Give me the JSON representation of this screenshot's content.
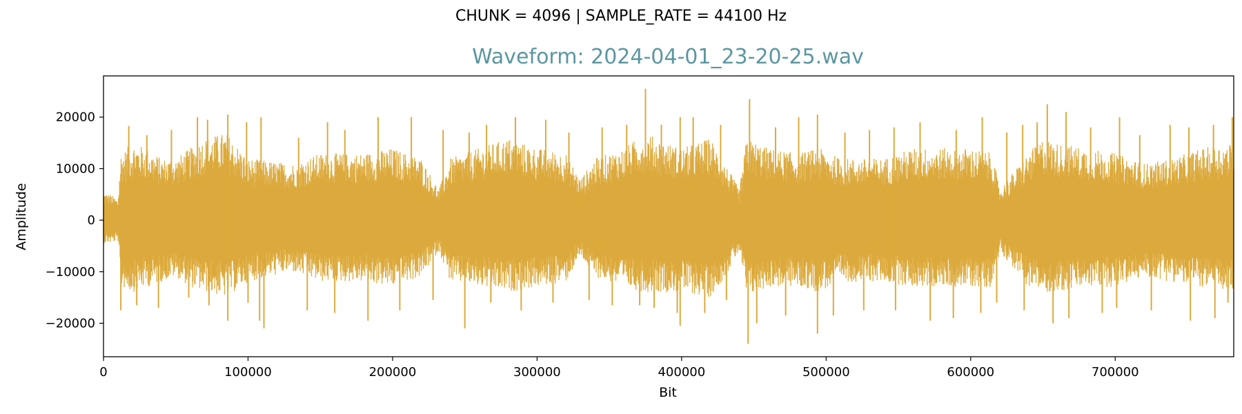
{
  "suptitle": "CHUNK = 4096 | SAMPLE_RATE = 44100 Hz",
  "colors": {
    "title": "#5b97a1",
    "waveform": "#dcaa3c",
    "axes": "#000000",
    "background": "#ffffff"
  },
  "chart_data": {
    "type": "line",
    "title": "Waveform: 2024-04-01_23-20-25.wav",
    "xlabel": "Bit",
    "ylabel": "Amplitude",
    "xlim": [
      0,
      782000
    ],
    "ylim": [
      -26500,
      28000
    ],
    "x_ticks": [
      0,
      100000,
      200000,
      300000,
      400000,
      500000,
      600000,
      700000
    ],
    "x_tick_labels": [
      "0",
      "100000",
      "200000",
      "300000",
      "400000",
      "500000",
      "600000",
      "700000"
    ],
    "y_ticks": [
      -20000,
      -10000,
      0,
      10000,
      20000
    ],
    "y_tick_labels": [
      "−20000",
      "−10000",
      "0",
      "10000",
      "20000"
    ],
    "grid": false,
    "series": [
      {
        "color": "#dcaa3c",
        "envelope": {
          "x": [
            0,
            5000,
            10000,
            12000,
            20000,
            30000,
            40000,
            50000,
            60000,
            70000,
            85000,
            100000,
            130000,
            150000,
            180000,
            200000,
            220000,
            232000,
            240000,
            260000,
            280000,
            300000,
            320000,
            330000,
            340000,
            360000,
            375000,
            390000,
            400000,
            420000,
            430000,
            440000,
            445000,
            460000,
            480000,
            495000,
            510000,
            540000,
            560000,
            580000,
            600000,
            615000,
            620000,
            640000,
            650000,
            660000,
            680000,
            700000,
            720000,
            740000,
            760000,
            782000
          ],
          "upper": [
            5500,
            5000,
            4000,
            13000,
            15000,
            14000,
            12000,
            12000,
            14000,
            16000,
            17000,
            12000,
            11000,
            13000,
            13000,
            14000,
            12000,
            6000,
            12000,
            14000,
            16000,
            14000,
            13000,
            8000,
            12000,
            14000,
            17000,
            15000,
            14000,
            16000,
            11000,
            6000,
            16000,
            14000,
            13000,
            14000,
            12000,
            12000,
            14000,
            14000,
            14000,
            13000,
            6000,
            13000,
            16000,
            15000,
            14000,
            13000,
            11000,
            12000,
            14000,
            15000
          ],
          "lower": [
            -4500,
            -4500,
            -4000,
            -13000,
            -14000,
            -13000,
            -12000,
            -11000,
            -13000,
            -14000,
            -15000,
            -12000,
            -10000,
            -12000,
            -12000,
            -13000,
            -11000,
            -6000,
            -12000,
            -13000,
            -14000,
            -13000,
            -12000,
            -7000,
            -11000,
            -13000,
            -14000,
            -14000,
            -14000,
            -15000,
            -11000,
            -6000,
            -15000,
            -13000,
            -13000,
            -14000,
            -12000,
            -12000,
            -13000,
            -13000,
            -13000,
            -13000,
            -6000,
            -13000,
            -14000,
            -14000,
            -13000,
            -13000,
            -11000,
            -12000,
            -13000,
            -14000
          ]
        },
        "peaks": [
          [
            17500,
            18300
          ],
          [
            30000,
            16500
          ],
          [
            47000,
            17500
          ],
          [
            65000,
            20000
          ],
          [
            72000,
            19500
          ],
          [
            86000,
            20500
          ],
          [
            99000,
            19000
          ],
          [
            109000,
            20000
          ],
          [
            135000,
            16000
          ],
          [
            155000,
            19000
          ],
          [
            167000,
            17500
          ],
          [
            190000,
            20000
          ],
          [
            213000,
            20000
          ],
          [
            235000,
            17500
          ],
          [
            253000,
            17000
          ],
          [
            265000,
            18500
          ],
          [
            285000,
            20000
          ],
          [
            306000,
            19500
          ],
          [
            322000,
            17000
          ],
          [
            345000,
            18000
          ],
          [
            362000,
            18500
          ],
          [
            375000,
            25500
          ],
          [
            386000,
            18500
          ],
          [
            399000,
            20000
          ],
          [
            408000,
            20000
          ],
          [
            427000,
            18500
          ],
          [
            447000,
            23500
          ],
          [
            465000,
            18000
          ],
          [
            481000,
            20000
          ],
          [
            494000,
            20500
          ],
          [
            513000,
            17000
          ],
          [
            530000,
            17500
          ],
          [
            547000,
            18000
          ],
          [
            565000,
            19000
          ],
          [
            590000,
            17500
          ],
          [
            608000,
            20000
          ],
          [
            625000,
            17000
          ],
          [
            636000,
            18500
          ],
          [
            646000,
            19000
          ],
          [
            653000,
            22500
          ],
          [
            666000,
            21000
          ],
          [
            683000,
            18000
          ],
          [
            703000,
            20000
          ],
          [
            717000,
            16500
          ],
          [
            738000,
            18500
          ],
          [
            751000,
            18000
          ],
          [
            768000,
            18500
          ],
          [
            781000,
            20000
          ]
        ],
        "troughs": [
          [
            12000,
            -17500
          ],
          [
            23000,
            -16500
          ],
          [
            38000,
            -17000
          ],
          [
            59000,
            -15000
          ],
          [
            73000,
            -16500
          ],
          [
            86000,
            -19500
          ],
          [
            100000,
            -16000
          ],
          [
            108000,
            -19500
          ],
          [
            111000,
            -21000
          ],
          [
            141000,
            -17500
          ],
          [
            160000,
            -18000
          ],
          [
            183000,
            -19500
          ],
          [
            205000,
            -17500
          ],
          [
            228000,
            -15500
          ],
          [
            250000,
            -21000
          ],
          [
            268000,
            -16000
          ],
          [
            289000,
            -17500
          ],
          [
            311000,
            -16000
          ],
          [
            336000,
            -15500
          ],
          [
            352000,
            -16500
          ],
          [
            371000,
            -16500
          ],
          [
            381000,
            -17000
          ],
          [
            397000,
            -18000
          ],
          [
            399000,
            -20500
          ],
          [
            416000,
            -18000
          ],
          [
            431000,
            -15500
          ],
          [
            446000,
            -24000
          ],
          [
            452000,
            -20000
          ],
          [
            472000,
            -18500
          ],
          [
            494000,
            -22000
          ],
          [
            505000,
            -18500
          ],
          [
            526000,
            -17500
          ],
          [
            548000,
            -17500
          ],
          [
            572000,
            -19500
          ],
          [
            588000,
            -19000
          ],
          [
            607000,
            -18000
          ],
          [
            618000,
            -16000
          ],
          [
            637000,
            -17500
          ],
          [
            657000,
            -20000
          ],
          [
            668000,
            -19000
          ],
          [
            691000,
            -18000
          ],
          [
            701000,
            -17000
          ],
          [
            725000,
            -17500
          ],
          [
            752000,
            -19500
          ],
          [
            769000,
            -19000
          ],
          [
            778000,
            -16000
          ]
        ]
      }
    ]
  }
}
